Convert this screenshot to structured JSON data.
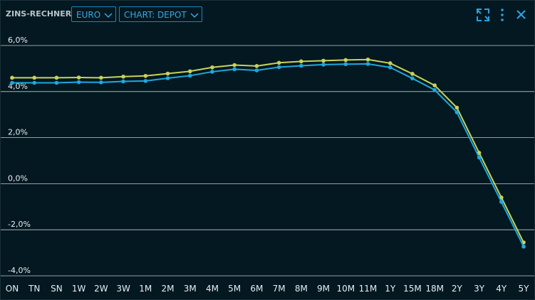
{
  "header": {
    "title": "ZINS-RECHNER",
    "currency": "EURO",
    "view": "CHART: DEPOT"
  },
  "chart_data": {
    "type": "line",
    "categories": [
      "ON",
      "TN",
      "SN",
      "1W",
      "2W",
      "3W",
      "1M",
      "2M",
      "3M",
      "4M",
      "5M",
      "6M",
      "7M",
      "8M",
      "9M",
      "10M",
      "11M",
      "1Y",
      "15M",
      "18M",
      "2Y",
      "3Y",
      "4Y",
      "5Y"
    ],
    "series": [
      {
        "color": "#c8d25a",
        "values": [
          4.6,
          4.6,
          4.6,
          4.61,
          4.6,
          4.65,
          4.68,
          4.78,
          4.88,
          5.05,
          5.15,
          5.11,
          5.25,
          5.31,
          5.34,
          5.37,
          5.39,
          5.23,
          4.77,
          4.27,
          3.3,
          1.34,
          -0.6,
          -2.55
        ]
      },
      {
        "color": "#1ea8de",
        "values": [
          4.38,
          4.38,
          4.38,
          4.41,
          4.4,
          4.44,
          4.46,
          4.58,
          4.69,
          4.86,
          4.97,
          4.92,
          5.06,
          5.12,
          5.17,
          5.19,
          5.2,
          5.05,
          4.57,
          4.07,
          3.1,
          1.14,
          -0.79,
          -2.73
        ]
      }
    ],
    "ylim": [
      -4,
      6.6
    ],
    "yticks": [
      {
        "value": 6,
        "label": "6,0%"
      },
      {
        "value": 4,
        "label": "4,0%"
      },
      {
        "value": 2,
        "label": "2,0%"
      },
      {
        "value": 0,
        "label": "0,0%"
      },
      {
        "value": -2,
        "label": "-2,0%"
      },
      {
        "value": -4,
        "label": "-4,0%"
      }
    ],
    "grid": true
  }
}
